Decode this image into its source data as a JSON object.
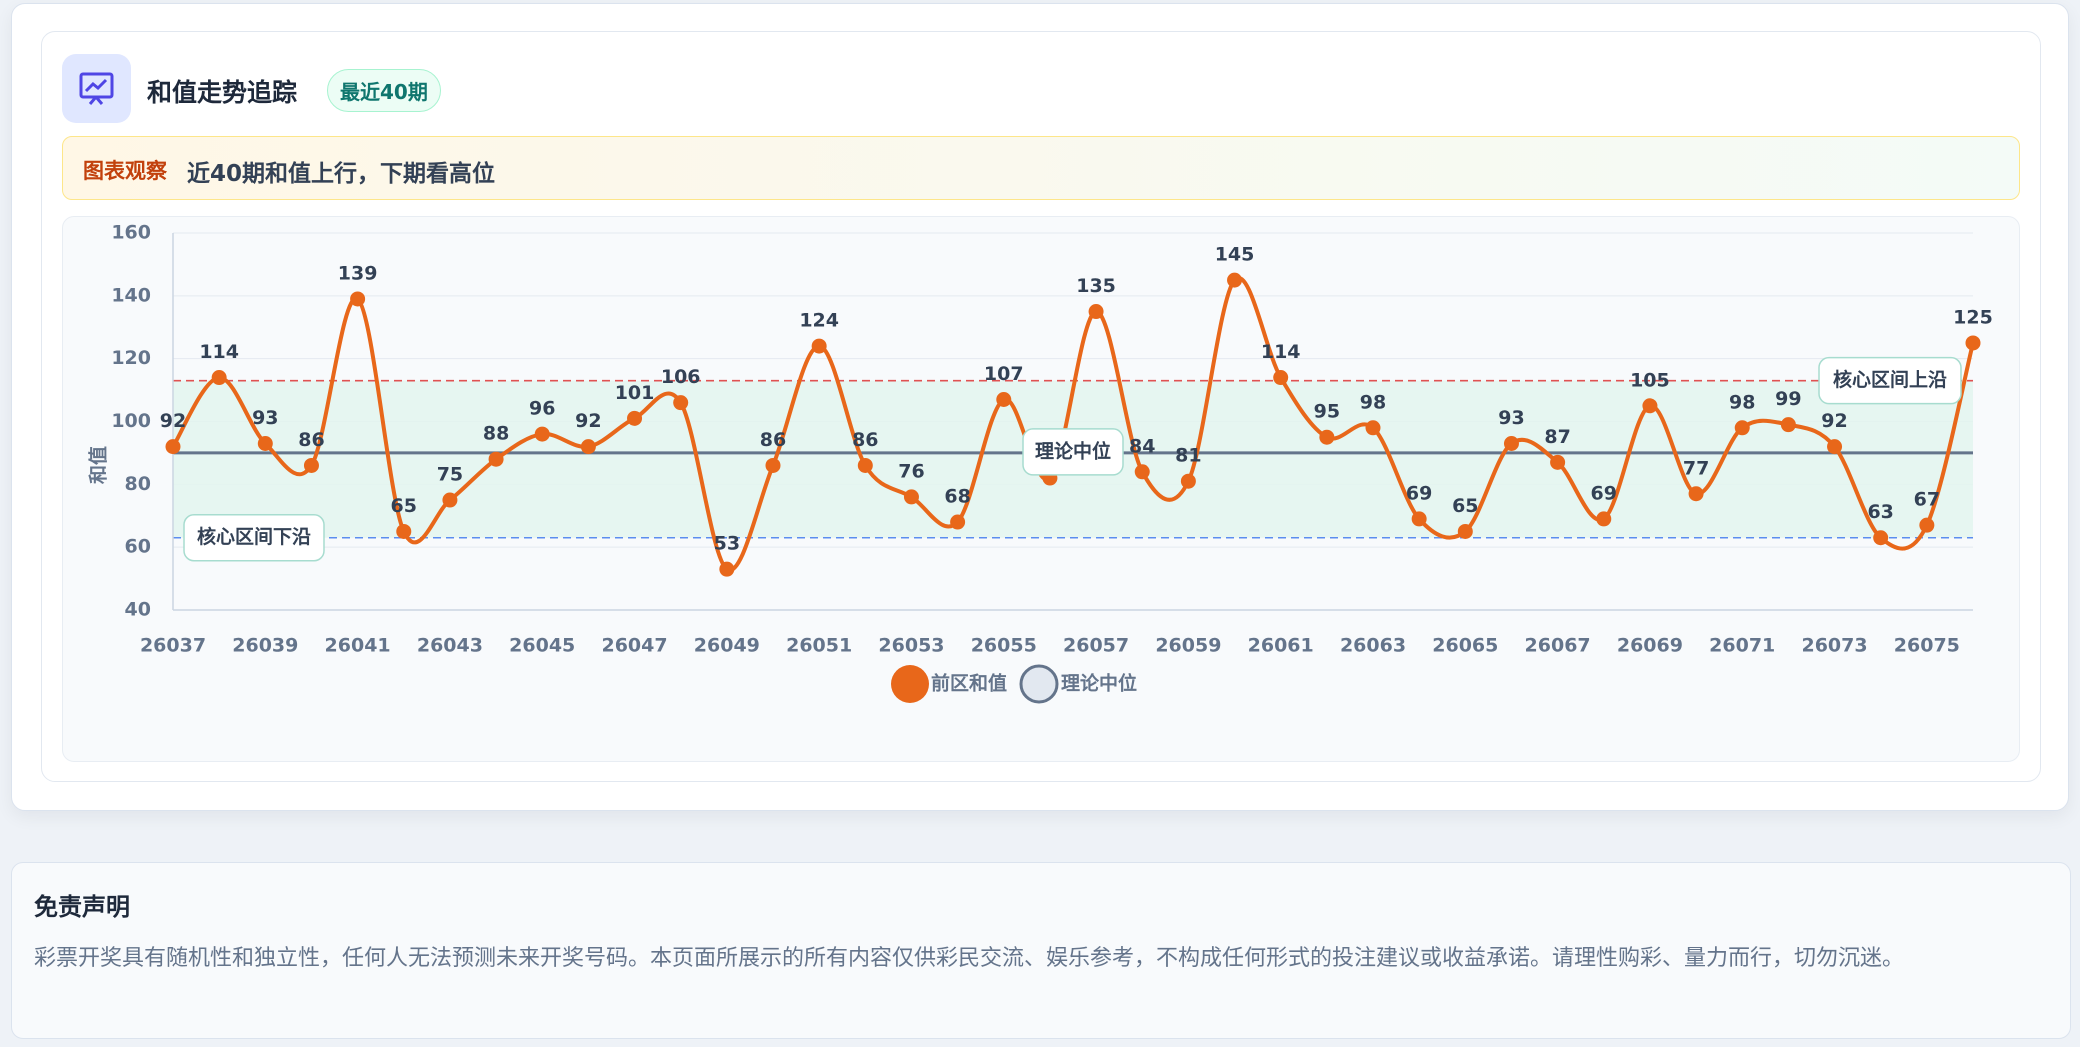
{
  "header": {
    "title": "和值走势追踪",
    "badge": "最近40期"
  },
  "observation": {
    "label": "图表观察",
    "text": "近40期和值上行，下期看高位"
  },
  "chart_data": {
    "type": "line",
    "y_label": "和值",
    "categories": [
      "26037",
      null,
      "26039",
      null,
      "26041",
      null,
      "26043",
      null,
      "26045",
      null,
      "26047",
      null,
      "26049",
      null,
      "26051",
      null,
      "26053",
      null,
      "26055",
      null,
      "26057",
      null,
      "26059",
      null,
      "26061",
      null,
      "26063",
      null,
      "26065",
      null,
      "26067",
      null,
      "26069",
      null,
      "26071",
      null,
      "26073",
      null,
      "26075",
      null
    ],
    "series": [
      {
        "name": "前区和值",
        "color": "#e8671a",
        "values": [
          92,
          114,
          93,
          86,
          139,
          65,
          75,
          88,
          96,
          92,
          101,
          106,
          53,
          86,
          124,
          86,
          76,
          68,
          107,
          82,
          135,
          84,
          81,
          145,
          114,
          95,
          98,
          69,
          65,
          93,
          87,
          69,
          105,
          77,
          98,
          99,
          92,
          63,
          67,
          125
        ]
      }
    ],
    "median": {
      "name": "理论中位",
      "value": 90,
      "color": "#64748b"
    },
    "band": {
      "upper": 113,
      "lower": 63,
      "upper_label": "核心区间上沿",
      "lower_label": "核心区间下沿",
      "upper_color": "#e05252",
      "lower_color": "#5b8def",
      "fill": "#e3f4ee"
    },
    "ylim": [
      40,
      160
    ],
    "yticks": [
      40,
      60,
      80,
      100,
      120,
      140,
      160
    ],
    "grid": true
  },
  "disclaimer": {
    "title": "免责声明",
    "text": "彩票开奖具有随机性和独立性，任何人无法预测未来开奖号码。本页面所展示的所有内容仅供彩民交流、娱乐参考，不构成任何形式的投注建议或收益承诺。请理性购彩、量力而行，切勿沉迷。"
  }
}
